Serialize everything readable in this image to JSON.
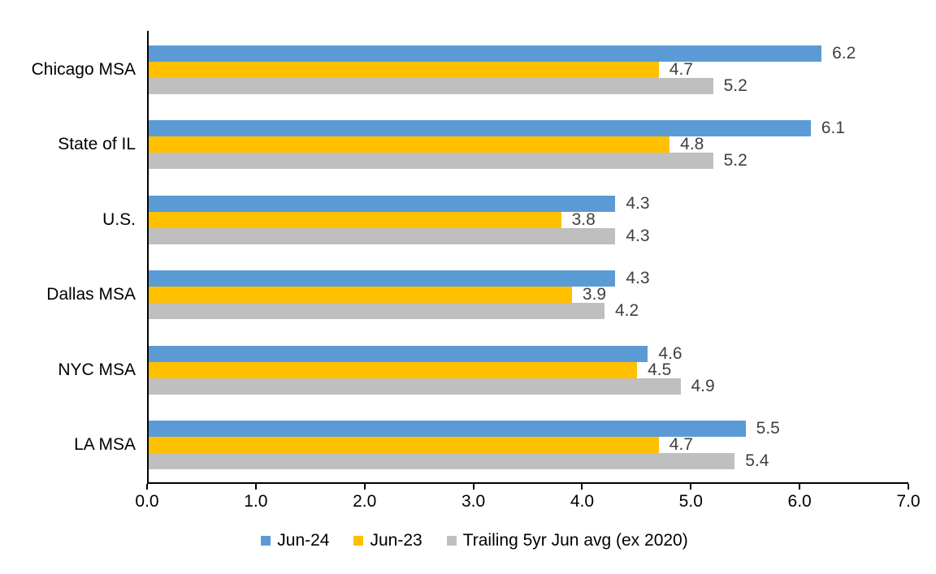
{
  "chart_data": {
    "type": "bar",
    "orientation": "horizontal",
    "title": "",
    "xlabel": "",
    "ylabel": "",
    "categories": [
      "Chicago MSA",
      "State of IL",
      "U.S.",
      "Dallas MSA",
      "NYC MSA",
      "LA MSA"
    ],
    "series": [
      {
        "name": "Jun-24",
        "color": "#5B9BD5",
        "values": [
          6.2,
          6.1,
          4.3,
          4.3,
          4.6,
          5.5
        ]
      },
      {
        "name": "Jun-23",
        "color": "#FFC000",
        "values": [
          4.7,
          4.8,
          3.8,
          3.9,
          4.5,
          4.7
        ]
      },
      {
        "name": "Trailing 5yr Jun avg (ex 2020)",
        "color": "#BFBFBF",
        "values": [
          5.2,
          5.2,
          4.3,
          4.2,
          4.9,
          5.4
        ]
      }
    ],
    "xlim": [
      0,
      7
    ],
    "x_ticks": [
      "0.0",
      "1.0",
      "2.0",
      "3.0",
      "4.0",
      "5.0",
      "6.0",
      "7.0"
    ],
    "grid": false,
    "legend_position": "bottom",
    "value_label_color": "#404040",
    "axis_color": "#000000",
    "text_color": "#000000"
  }
}
